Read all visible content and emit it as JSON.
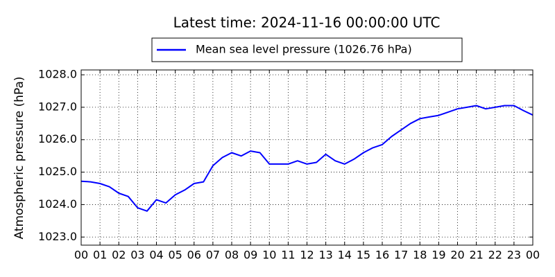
{
  "chart_data": {
    "type": "line",
    "title": "Latest time: 2024-11-16 00:00:00 UTC",
    "y_label": "Atmospheric pressure (hPa)",
    "legend": "upper center",
    "grid": true,
    "x": [
      0,
      0.5,
      1,
      1.5,
      2,
      2.5,
      3,
      3.5,
      4,
      4.5,
      5,
      5.5,
      6,
      6.5,
      7,
      7.5,
      8,
      8.5,
      9,
      9.5,
      10,
      10.5,
      11,
      11.5,
      12,
      12.5,
      13,
      13.5,
      14,
      14.5,
      15,
      15.5,
      16,
      16.5,
      17,
      17.5,
      18,
      18.5,
      19,
      19.5,
      20,
      20.5,
      21,
      21.5,
      22,
      22.5,
      23,
      23.5,
      24
    ],
    "series": [
      {
        "name": "Mean sea level pressure (1026.76 hPa)",
        "color": "#0000ff",
        "values": [
          1024.72,
          1024.7,
          1024.65,
          1024.55,
          1024.35,
          1024.25,
          1023.9,
          1023.8,
          1024.15,
          1024.05,
          1024.3,
          1024.45,
          1024.65,
          1024.7,
          1025.2,
          1025.45,
          1025.6,
          1025.5,
          1025.65,
          1025.6,
          1025.25,
          1025.25,
          1025.25,
          1025.35,
          1025.25,
          1025.3,
          1025.55,
          1025.35,
          1025.25,
          1025.4,
          1025.6,
          1025.75,
          1025.85,
          1026.1,
          1026.3,
          1026.5,
          1026.65,
          1026.7,
          1026.75,
          1026.85,
          1026.95,
          1027.0,
          1027.05,
          1026.95,
          1027.0,
          1027.05,
          1027.05,
          1026.9,
          1026.76
        ]
      }
    ],
    "xlim": [
      0,
      24
    ],
    "xticks": [
      {
        "value": 0,
        "label": "00"
      },
      {
        "value": 1,
        "label": "01"
      },
      {
        "value": 2,
        "label": "02"
      },
      {
        "value": 3,
        "label": "03"
      },
      {
        "value": 4,
        "label": "04"
      },
      {
        "value": 5,
        "label": "05"
      },
      {
        "value": 6,
        "label": "06"
      },
      {
        "value": 7,
        "label": "07"
      },
      {
        "value": 8,
        "label": "08"
      },
      {
        "value": 9,
        "label": "09"
      },
      {
        "value": 10,
        "label": "10"
      },
      {
        "value": 11,
        "label": "11"
      },
      {
        "value": 12,
        "label": "12"
      },
      {
        "value": 13,
        "label": "13"
      },
      {
        "value": 14,
        "label": "14"
      },
      {
        "value": 15,
        "label": "15"
      },
      {
        "value": 16,
        "label": "16"
      },
      {
        "value": 17,
        "label": "17"
      },
      {
        "value": 18,
        "label": "18"
      },
      {
        "value": 19,
        "label": "19"
      },
      {
        "value": 20,
        "label": "20"
      },
      {
        "value": 21,
        "label": "21"
      },
      {
        "value": 22,
        "label": "22"
      },
      {
        "value": 23,
        "label": "23"
      },
      {
        "value": 24,
        "label": "00"
      }
    ],
    "ylim": [
      1022.75,
      1028.15
    ],
    "yticks": [
      {
        "value": 1023,
        "label": "1023.0"
      },
      {
        "value": 1024,
        "label": "1024.0"
      },
      {
        "value": 1025,
        "label": "1025.0"
      },
      {
        "value": 1026,
        "label": "1026.0"
      },
      {
        "value": 1027,
        "label": "1027.0"
      },
      {
        "value": 1028,
        "label": "1028.0"
      }
    ]
  }
}
